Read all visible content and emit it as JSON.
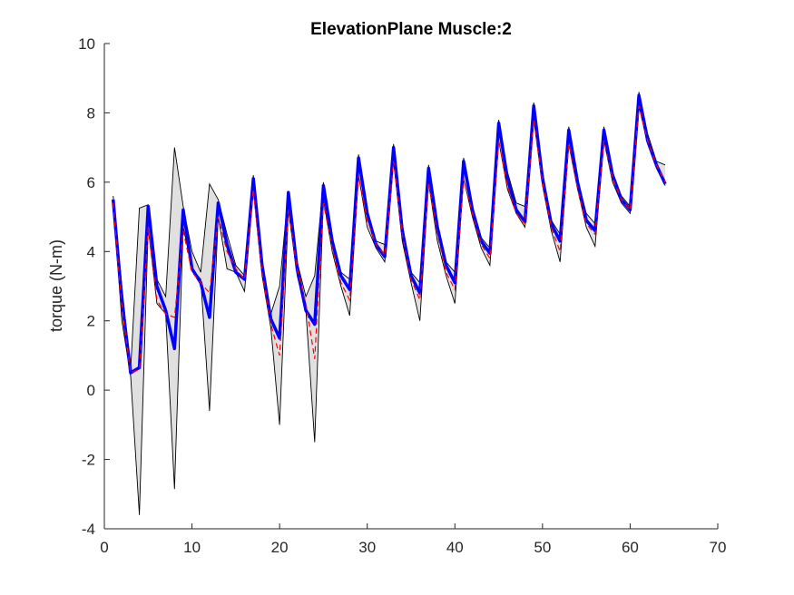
{
  "chart_data": {
    "type": "line",
    "title": "ElevationPlane Muscle:2",
    "xlabel": "",
    "ylabel": "torque (N-m)",
    "xlim": [
      0,
      70
    ],
    "ylim": [
      -4,
      10
    ],
    "xticks": [
      0,
      10,
      20,
      30,
      40,
      50,
      60,
      70
    ],
    "yticks": [
      -4,
      -2,
      0,
      2,
      4,
      6,
      8,
      10
    ],
    "grid": false,
    "legend": "none",
    "colors": {
      "band_fill": "#e0e0e0",
      "band_edge": "#000000",
      "mean_line": "#0000ff",
      "reference_line": "#ff0000"
    },
    "x": [
      1,
      2,
      3,
      4,
      5,
      6,
      7,
      8,
      9,
      10,
      11,
      12,
      13,
      14,
      15,
      16,
      17,
      18,
      19,
      20,
      21,
      22,
      23,
      24,
      25,
      26,
      27,
      28,
      29,
      30,
      31,
      32,
      33,
      34,
      35,
      36,
      37,
      38,
      39,
      40,
      41,
      42,
      43,
      44,
      45,
      46,
      47,
      48,
      49,
      50,
      51,
      52,
      53,
      54,
      55,
      56,
      57,
      58,
      59,
      60,
      61,
      62,
      63,
      64
    ],
    "series": [
      {
        "role": "band-upper",
        "values": [
          5.6,
          3.0,
          0.6,
          5.25,
          5.35,
          3.2,
          2.7,
          7.0,
          5.3,
          4.0,
          3.4,
          5.95,
          5.5,
          4.5,
          3.6,
          3.3,
          6.2,
          3.6,
          2.2,
          3.0,
          5.75,
          3.7,
          2.7,
          3.3,
          6.0,
          4.3,
          3.4,
          3.2,
          6.8,
          5.2,
          4.3,
          4.2,
          7.1,
          4.8,
          3.4,
          3.1,
          6.5,
          4.8,
          3.7,
          3.4,
          6.7,
          5.3,
          4.4,
          4.1,
          7.8,
          6.3,
          5.4,
          5.3,
          8.3,
          6.3,
          4.9,
          4.5,
          7.6,
          6.1,
          5.1,
          4.8,
          7.6,
          6.3,
          5.6,
          5.3,
          8.6,
          7.4,
          6.6,
          6.5
        ]
      },
      {
        "role": "band-lower",
        "values": [
          5.4,
          2.0,
          0.4,
          -3.6,
          4.7,
          2.5,
          2.2,
          -2.85,
          4.7,
          3.5,
          3.2,
          -0.6,
          5.0,
          3.5,
          3.4,
          2.85,
          5.8,
          3.3,
          1.8,
          -1.0,
          5.2,
          3.3,
          2.3,
          -1.5,
          5.5,
          4.0,
          3.0,
          2.15,
          6.2,
          4.7,
          4.1,
          3.7,
          6.6,
          4.3,
          3.1,
          2.0,
          6.0,
          4.3,
          3.3,
          2.5,
          6.1,
          5.0,
          4.1,
          3.6,
          7.2,
          5.8,
          5.1,
          4.7,
          7.8,
          5.9,
          4.6,
          3.7,
          7.1,
          5.8,
          4.7,
          4.15,
          7.2,
          6.0,
          5.4,
          5.1,
          8.2,
          7.1,
          6.4,
          5.9
        ]
      },
      {
        "role": "reference-dashed",
        "values": [
          5.4,
          2.4,
          0.5,
          0.6,
          4.7,
          2.6,
          2.2,
          2.1,
          4.6,
          3.4,
          3.1,
          2.8,
          5.0,
          4.0,
          3.5,
          3.2,
          5.8,
          3.4,
          1.9,
          1.0,
          5.2,
          3.5,
          2.5,
          0.9,
          5.4,
          4.1,
          3.1,
          2.6,
          6.2,
          4.9,
          4.2,
          3.9,
          6.6,
          4.5,
          3.2,
          2.6,
          6.0,
          4.5,
          3.4,
          2.9,
          6.1,
          5.1,
          4.2,
          3.8,
          7.2,
          5.9,
          5.1,
          4.8,
          7.8,
          6.0,
          4.7,
          4.0,
          7.1,
          5.8,
          4.8,
          4.5,
          7.2,
          6.1,
          5.5,
          5.2,
          8.2,
          7.2,
          6.5,
          6.0
        ]
      },
      {
        "role": "mean",
        "values": [
          5.5,
          2.6,
          0.5,
          0.65,
          5.3,
          3.0,
          2.3,
          1.2,
          5.2,
          3.5,
          3.1,
          2.1,
          5.4,
          4.2,
          3.4,
          3.2,
          6.1,
          3.6,
          2.05,
          1.5,
          5.7,
          3.5,
          2.3,
          1.9,
          5.9,
          4.3,
          3.3,
          2.9,
          6.7,
          5.1,
          4.2,
          3.85,
          7.0,
          4.6,
          3.3,
          2.8,
          6.4,
          4.7,
          3.6,
          3.1,
          6.6,
          5.2,
          4.3,
          3.95,
          7.7,
          6.1,
          5.2,
          4.85,
          8.2,
          6.1,
          4.8,
          4.3,
          7.5,
          6.0,
          4.9,
          4.6,
          7.5,
          6.2,
          5.5,
          5.2,
          8.5,
          7.2,
          6.5,
          5.95
        ]
      }
    ]
  }
}
